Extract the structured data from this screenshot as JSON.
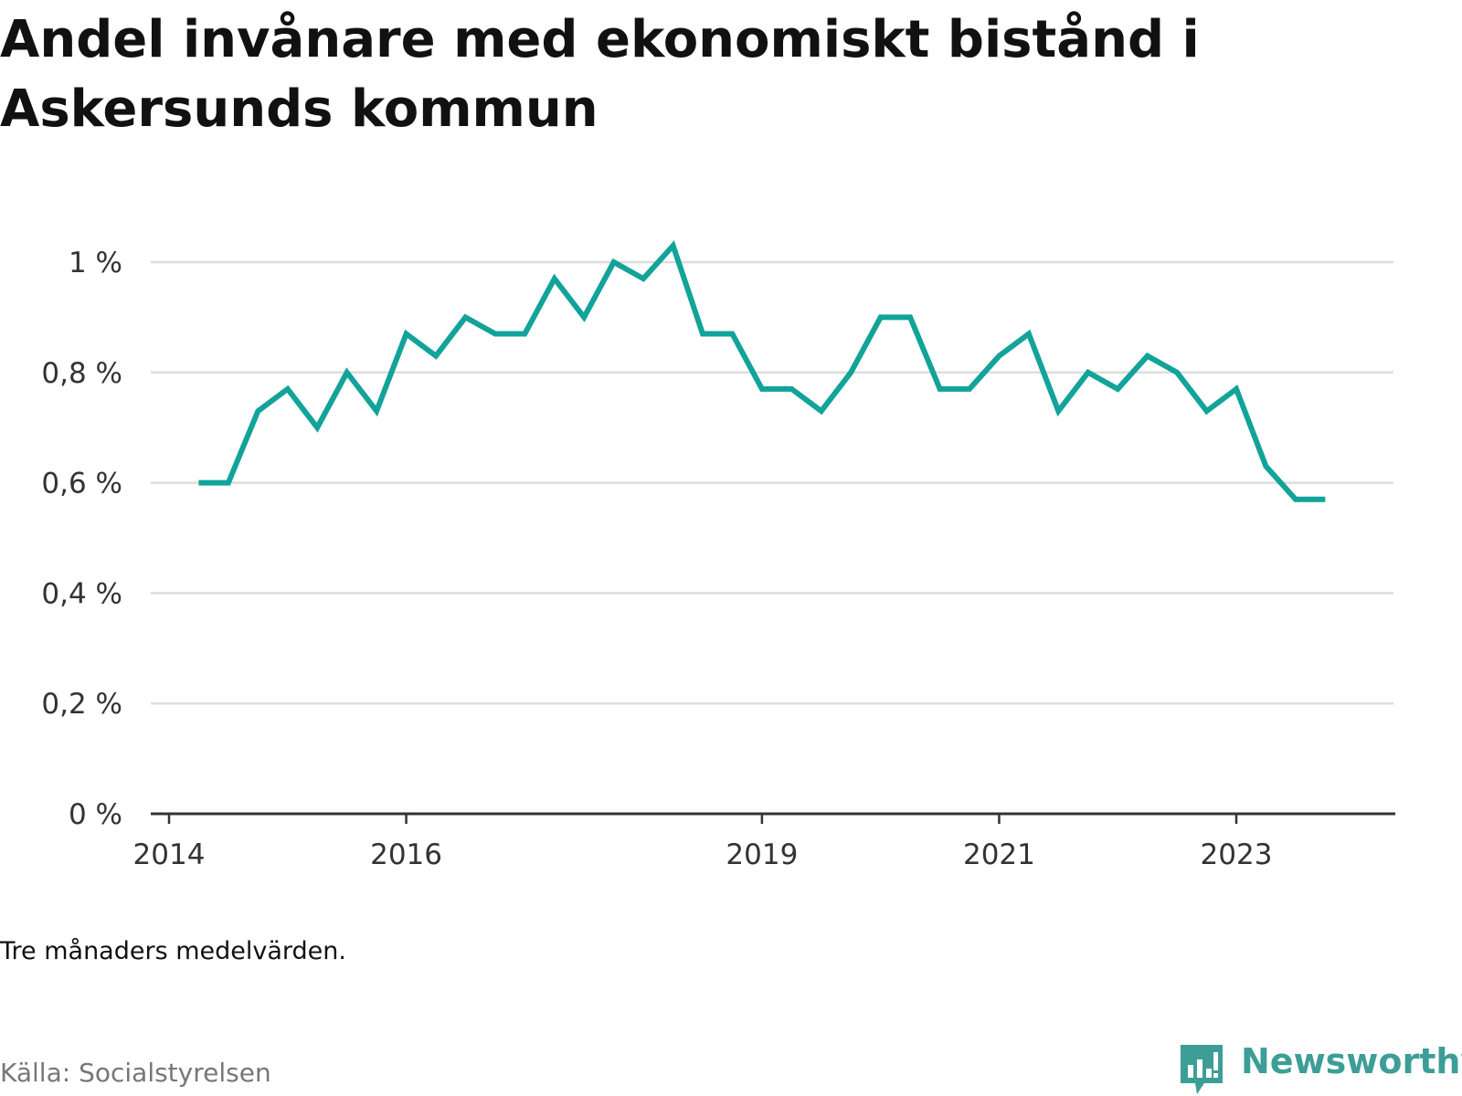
{
  "title": "Andel invånare med ekonomiskt bistånd i Askersunds kommun",
  "note": "Tre månaders medelvärden.",
  "source": "Källa: Socialstyrelsen",
  "brand": {
    "name": "Newsworthy",
    "icon": "newsworthy-logo-icon"
  },
  "colors": {
    "line": "#12a39a",
    "grid": "#dddddd",
    "axis": "#333333",
    "brand": "#3d9e97"
  },
  "chart_data": {
    "type": "line",
    "title": "Andel invånare med ekonomiskt bistånd i Askersunds kommun",
    "xlabel": "",
    "ylabel": "",
    "y_unit": "%",
    "ylim": [
      0,
      1.05
    ],
    "yticks": [
      0,
      0.2,
      0.4,
      0.6,
      0.8,
      1
    ],
    "ytick_labels": [
      "0 %",
      "0,2 %",
      "0,4 %",
      "0,6 %",
      "0,8 %",
      "1 %"
    ],
    "xlim": [
      "2014-01",
      "2024-03"
    ],
    "xticks": [
      "2014-01",
      "2016-01",
      "2019-01",
      "2021-01",
      "2023-01"
    ],
    "xtick_labels": [
      "2014",
      "2016",
      "2019",
      "2021",
      "2023"
    ],
    "grid": true,
    "legend": "none",
    "series": [
      {
        "x": [
          "2014-04",
          "2014-07",
          "2014-10",
          "2015-01",
          "2015-04",
          "2015-07",
          "2015-10",
          "2016-01",
          "2016-04",
          "2016-07",
          "2016-10",
          "2017-01",
          "2017-04",
          "2017-07",
          "2017-10",
          "2018-01",
          "2018-04",
          "2018-07",
          "2018-10",
          "2019-01",
          "2019-04",
          "2019-07",
          "2019-10",
          "2020-01",
          "2020-04",
          "2020-07",
          "2020-10",
          "2021-01",
          "2021-04",
          "2021-07",
          "2021-10",
          "2022-01",
          "2022-04",
          "2022-07",
          "2022-10",
          "2023-01",
          "2023-04",
          "2023-07",
          "2023-10"
        ],
        "values": [
          0.6,
          0.6,
          0.73,
          0.77,
          0.7,
          0.8,
          0.73,
          0.87,
          0.83,
          0.9,
          0.87,
          0.87,
          0.97,
          0.9,
          1.0,
          0.97,
          1.03,
          0.87,
          0.87,
          0.77,
          0.77,
          0.73,
          0.8,
          0.9,
          0.9,
          0.77,
          0.77,
          0.83,
          0.87,
          0.73,
          0.8,
          0.77,
          0.83,
          0.8,
          0.73,
          0.77,
          0.63,
          0.57,
          0.57
        ]
      }
    ]
  }
}
